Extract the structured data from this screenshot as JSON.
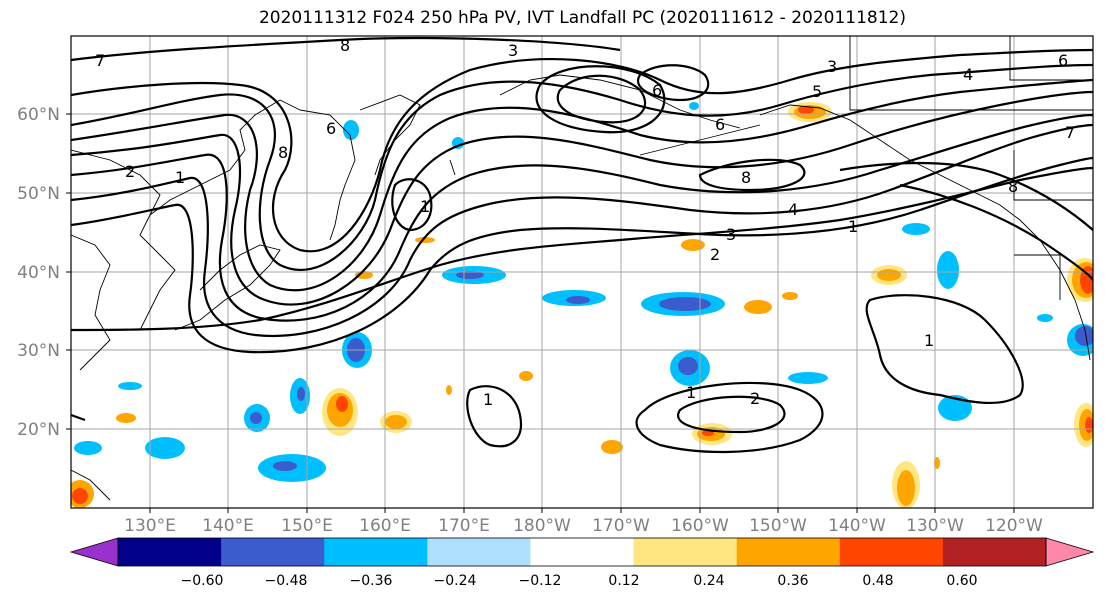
{
  "title": "2020111312 F024 250 hPa PV, IVT Landfall PC (2020111612 - 2020111812)",
  "latitude_labels": [
    "60°N",
    "50°N",
    "40°N",
    "30°N",
    "20°N"
  ],
  "longitude_labels": [
    "130°E",
    "140°E",
    "150°E",
    "160°E",
    "170°E",
    "180°W",
    "170°W",
    "160°W",
    "150°W",
    "140°W",
    "130°W",
    "120°W"
  ],
  "colorbar": {
    "colors": [
      "#9932cc",
      "#00008b",
      "#3a5ccc",
      "#00bfff",
      "#b0e0ff",
      "#ffffff",
      "#ffe680",
      "#ffa500",
      "#ff4500",
      "#b22222",
      "#ff88aa"
    ],
    "tick_labels": [
      "−0.60",
      "−0.48",
      "−0.36",
      "−0.24",
      "−0.12",
      "0.12",
      "0.24",
      "0.36",
      "0.48",
      "0.60"
    ]
  },
  "contour_labels": [
    "7",
    "8",
    "3",
    "2",
    "1",
    "8",
    "6",
    "6",
    "6",
    "5",
    "3",
    "4",
    "6",
    "8",
    "4",
    "3",
    "2",
    "1",
    "1",
    "1",
    "2",
    "1",
    "8",
    "7",
    "1"
  ]
}
